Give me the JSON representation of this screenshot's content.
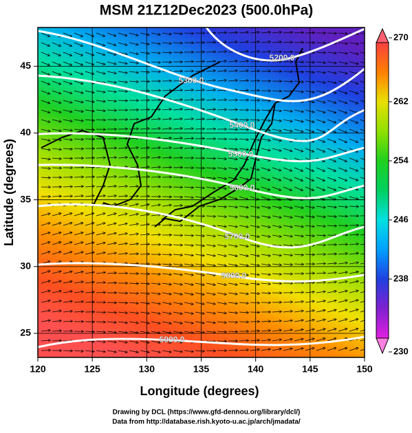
{
  "title": "MSM 21Z12Dec2023 (500.0hPa)",
  "x_axis": {
    "label": "Longitude (degrees)",
    "lim": [
      120,
      150
    ],
    "ticks": [
      120,
      125,
      130,
      135,
      140,
      145,
      150
    ]
  },
  "y_axis": {
    "label": "Latitude  (degrees)",
    "lim": [
      23.2,
      47.9
    ],
    "ticks": [
      25,
      30,
      35,
      40,
      45
    ]
  },
  "colorbar": {
    "lim": [
      230,
      270
    ],
    "ticks": [
      230,
      238,
      246,
      254,
      262,
      270
    ]
  },
  "contours": [
    {
      "label": "5200.0"
    },
    {
      "label": "5300.0"
    },
    {
      "label": "5400.0"
    },
    {
      "label": "5500.0"
    },
    {
      "label": "5600.0"
    },
    {
      "label": "5700.0"
    },
    {
      "label": "5800.0"
    },
    {
      "label": "5900.0"
    }
  ],
  "credits": [
    "Drawing by DCL (https://www.gfd-dennou.org/library/dcl/)",
    "Data from http://database.rish.kyoto-u.ac.jp/arch/jmadata/"
  ]
}
